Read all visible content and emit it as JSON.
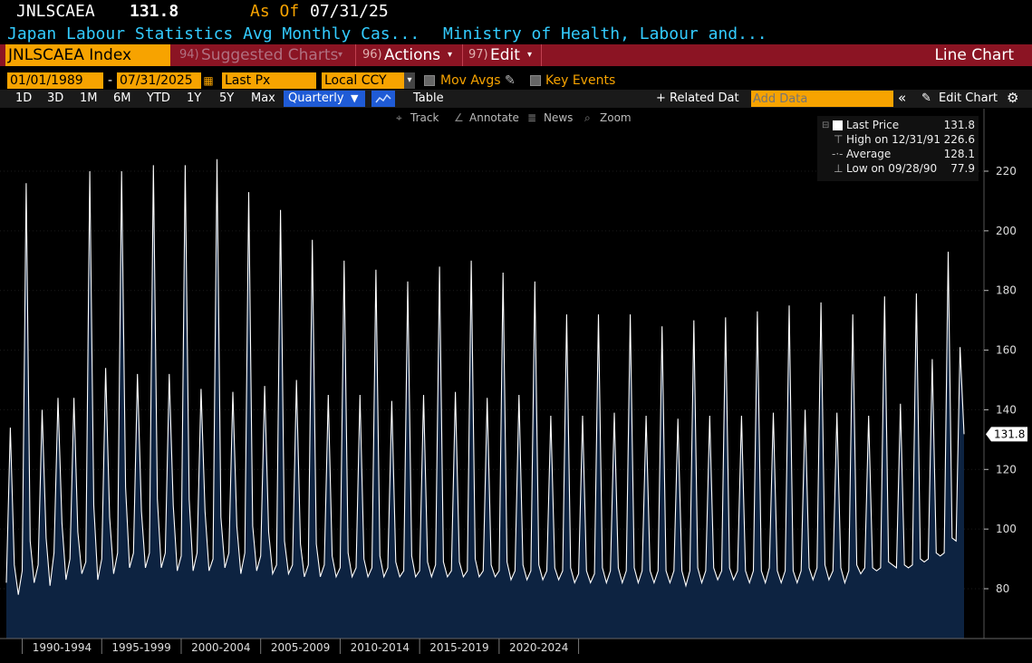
{
  "header": {
    "ticker": "JNLSCAEA",
    "last_value": "131.8",
    "as_of_label": "As Of",
    "as_of_date": "07/31/25",
    "description": "Japan Labour Statistics Avg Monthly Cas...",
    "source": "Ministry of Health, Labour and..."
  },
  "toolbar": {
    "security": "JNLSCAEA Index",
    "suggested_num": "94)",
    "suggested": "Suggested Charts",
    "actions_num": "96)",
    "actions": "Actions",
    "edit_num": "97)",
    "edit": "Edit",
    "chart_type": "Line Chart"
  },
  "controls": {
    "start_date": "01/01/1989",
    "date_sep": "-",
    "end_date": "07/31/2025",
    "field": "Last Px",
    "currency": "Local CCY",
    "mov_avgs": "Mov Avgs",
    "key_events": "Key Events"
  },
  "ranges": {
    "items": [
      "1D",
      "3D",
      "1M",
      "6M",
      "YTD",
      "1Y",
      "5Y",
      "Max"
    ],
    "period": "Quarterly",
    "table": "Table",
    "related": "+ Related Dat",
    "add_data_placeholder": "Add Data",
    "edit_chart": "Edit Chart"
  },
  "tools": {
    "track": "Track",
    "annotate": "Annotate",
    "news": "News",
    "zoom": "Zoom"
  },
  "legend": {
    "last_label": "Last Price",
    "last_value": "131.8",
    "high_label": "High on 12/31/91",
    "high_value": "226.6",
    "avg_label": "Average",
    "avg_value": "128.1",
    "low_label": "Low on 09/28/90",
    "low_value": "77.9"
  },
  "colors": {
    "accent": "#f7a300",
    "bar": "#8b1423",
    "line": "#ffffff",
    "fill": "#0d2341",
    "cyan": "#33ccff",
    "selected": "#1f5bd6"
  },
  "chart_data": {
    "type": "area",
    "title": "Japan Labour Statistics Avg Monthly Cash Earnings",
    "frequency": "Quarterly",
    "ylim": [
      62,
      240
    ],
    "yticks": [
      80,
      100,
      120,
      140,
      160,
      180,
      200,
      220
    ],
    "x_period_labels": [
      "1990-1994",
      "1995-1999",
      "2000-2004",
      "2005-2009",
      "2010-2014",
      "2015-2019",
      "2020-2024"
    ],
    "last_value": 131.8,
    "x_start": "1989-Q1",
    "values": [
      82,
      134,
      88,
      78,
      86,
      216,
      96,
      82,
      88,
      140,
      97,
      81,
      92,
      144,
      102,
      83,
      90,
      144,
      99,
      85,
      89,
      220,
      108,
      83,
      90,
      154,
      104,
      85,
      92,
      220,
      114,
      87,
      92,
      152,
      106,
      87,
      92,
      222,
      110,
      87,
      92,
      152,
      108,
      86,
      91,
      222,
      110,
      86,
      92,
      147,
      106,
      86,
      90,
      224,
      104,
      87,
      92,
      146,
      101,
      85,
      92,
      213,
      101,
      86,
      91,
      148,
      99,
      85,
      88,
      207,
      96,
      85,
      88,
      150,
      95,
      84,
      88,
      197,
      95,
      84,
      88,
      145,
      91,
      84,
      87,
      190,
      92,
      84,
      87,
      145,
      90,
      84,
      87,
      187,
      91,
      84,
      87,
      143,
      89,
      84,
      86,
      183,
      91,
      84,
      86,
      145,
      89,
      84,
      88,
      188,
      89,
      84,
      86,
      146,
      89,
      84,
      86,
      190,
      90,
      84,
      86,
      144,
      88,
      84,
      86,
      186,
      89,
      83,
      86,
      145,
      88,
      83,
      86,
      183,
      88,
      83,
      86,
      138,
      87,
      83,
      86,
      172,
      87,
      82,
      85,
      138,
      86,
      82,
      85,
      172,
      87,
      82,
      86,
      139,
      87,
      82,
      86,
      172,
      87,
      82,
      86,
      138,
      86,
      82,
      86,
      168,
      86,
      82,
      86,
      137,
      86,
      81,
      86,
      170,
      87,
      82,
      86,
      138,
      87,
      83,
      86,
      171,
      87,
      83,
      86,
      138,
      86,
      82,
      86,
      173,
      86,
      82,
      87,
      139,
      86,
      82,
      86,
      175,
      86,
      82,
      86,
      140,
      87,
      83,
      87,
      176,
      88,
      83,
      86,
      139,
      87,
      82,
      86,
      172,
      88,
      85,
      87,
      138,
      87,
      86,
      87,
      178,
      89,
      88,
      87,
      142,
      88,
      87,
      88,
      179,
      90,
      89,
      90,
      157,
      92,
      91,
      92,
      193,
      97,
      96,
      161,
      131.8
    ]
  }
}
